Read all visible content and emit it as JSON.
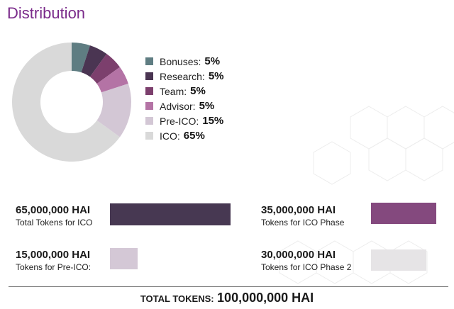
{
  "page": {
    "title": "Distribution"
  },
  "chart_data": {
    "type": "pie",
    "categories": [
      "Bonuses",
      "Research",
      "Team",
      "Advisor",
      "Pre-ICO",
      "ICO"
    ],
    "values": [
      5,
      5,
      5,
      5,
      15,
      65
    ],
    "colors": [
      "#5f7d82",
      "#4a3552",
      "#7c3f6d",
      "#b473a5",
      "#d3c7d5",
      "#d9d9d9"
    ],
    "legend": [
      {
        "label": "Bonuses:",
        "value": "5%",
        "color": "#5f7d82"
      },
      {
        "label": "Research:",
        "value": "5%",
        "color": "#4a3552"
      },
      {
        "label": "Team:",
        "value": "5%",
        "color": "#7c3f6d"
      },
      {
        "label": "Advisor:",
        "value": "5%",
        "color": "#b473a5"
      },
      {
        "label": "Pre-ICO:",
        "value": "15%",
        "color": "#d3c7d5"
      },
      {
        "label": "ICO:",
        "value": "65%",
        "color": "#d9d9d9"
      }
    ],
    "legend_position": "right"
  },
  "tokens": [
    {
      "amount": "65,000,000 HAI",
      "description": "Total Tokens for ICO",
      "value": 65000000,
      "color": "#473852"
    },
    {
      "amount": "35,000,000 HAI",
      "description": "Tokens for ICO Phase",
      "value": 35000000,
      "color": "#84497e"
    },
    {
      "amount": "15,000,000 HAI",
      "description": "Tokens for Pre-ICO:",
      "value": 15000000,
      "color": "#d4c8d6"
    },
    {
      "amount": "30,000,000 HAI",
      "description": "Tokens for ICO Phase 2",
      "value": 30000000,
      "color": "#e6e4e6"
    }
  ],
  "total": {
    "label": "TOTAL TOKENS:",
    "value": "100,000,000 HAI"
  }
}
